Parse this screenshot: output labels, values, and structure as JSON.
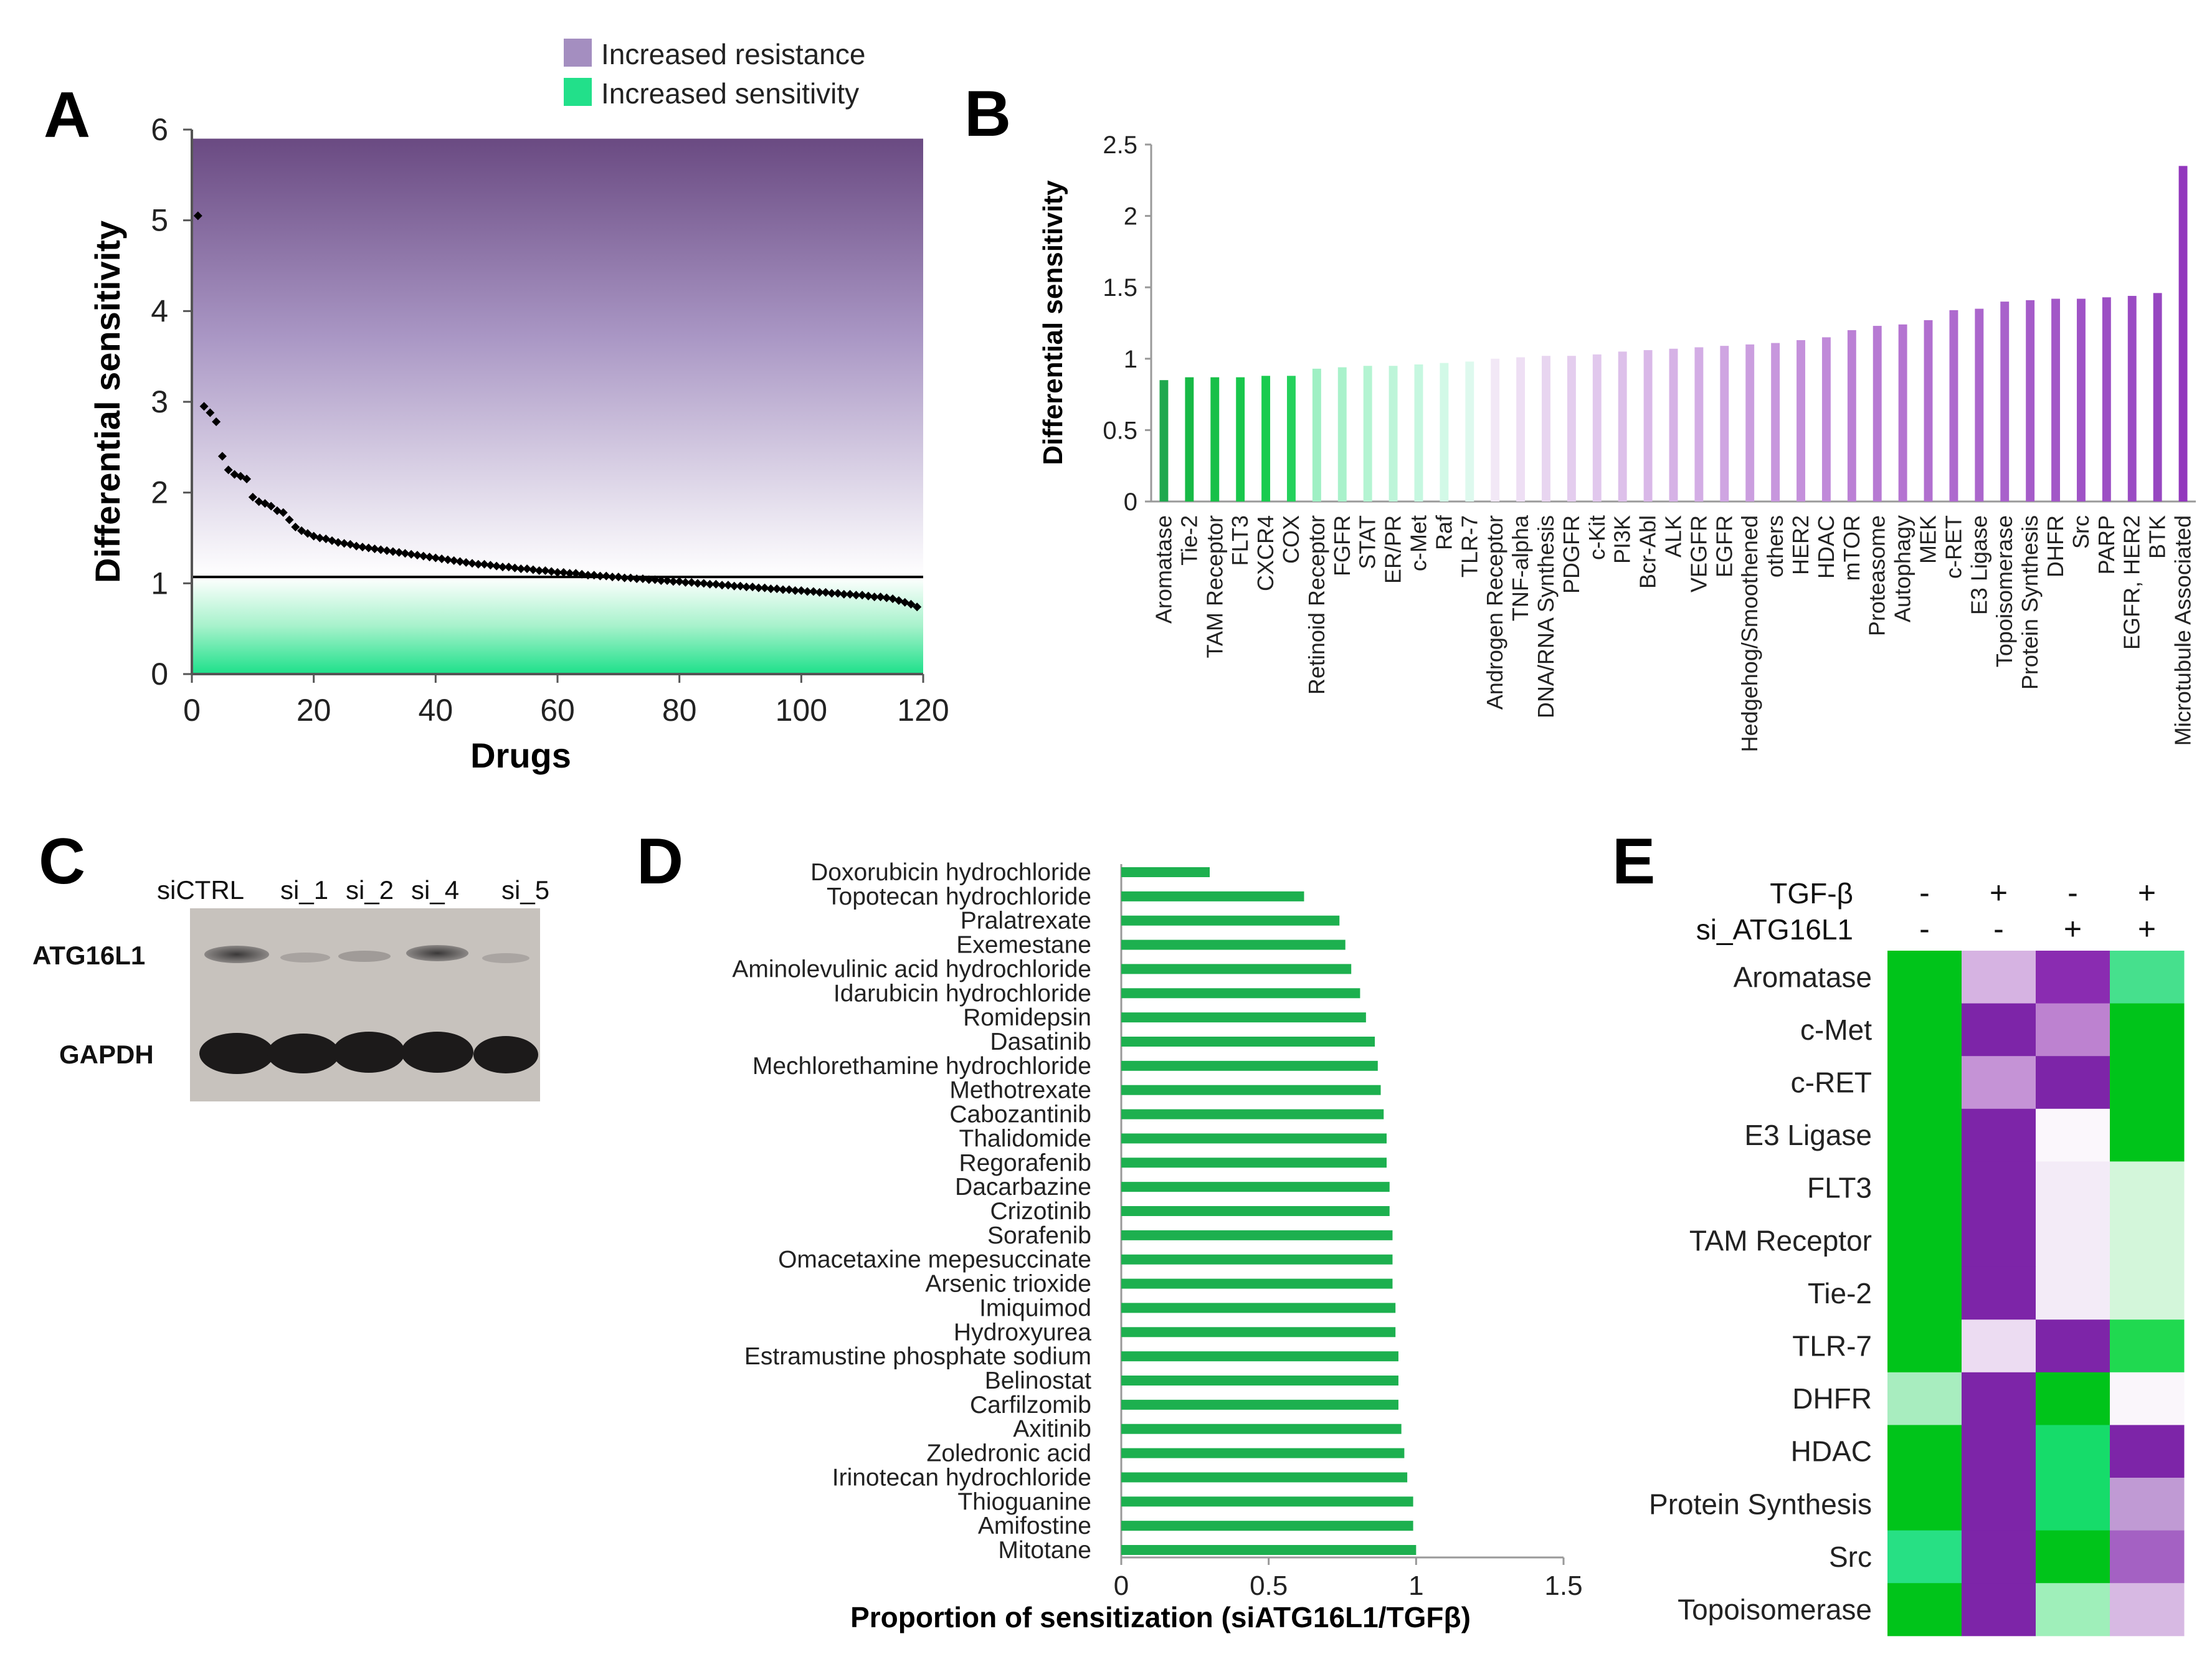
{
  "figure": {
    "panels": [
      "A",
      "B",
      "C",
      "D",
      "E"
    ]
  },
  "chart_data": [
    {
      "id": "A",
      "type": "scatter",
      "title": "",
      "xlabel": "Drugs",
      "ylabel": "Differential sensitivity",
      "xlim": [
        0,
        120
      ],
      "ylim": [
        0,
        6
      ],
      "xticks": [
        "0",
        "20",
        "40",
        "60",
        "80",
        "100",
        "120"
      ],
      "yticks": [
        "0",
        "1",
        "2",
        "3",
        "4",
        "5",
        "6"
      ],
      "threshold": 1.07,
      "legend": {
        "placement": "top-right",
        "entries": [
          {
            "label": "Increased resistance",
            "color": "#a48ec0"
          },
          {
            "label": "Increased sensitivity",
            "color": "#22e08a"
          }
        ]
      },
      "series": [
        {
          "name": "Drugs",
          "color": "#000000",
          "x": [
            1,
            2,
            3,
            4,
            5,
            6,
            7,
            8,
            9,
            10,
            11,
            12,
            13,
            14,
            15,
            16,
            17,
            18,
            19,
            20,
            21,
            22,
            23,
            24,
            25,
            26,
            27,
            28,
            29,
            30,
            31,
            32,
            33,
            34,
            35,
            36,
            37,
            38,
            39,
            40,
            41,
            42,
            43,
            44,
            45,
            46,
            47,
            48,
            49,
            50,
            51,
            52,
            53,
            54,
            55,
            56,
            57,
            58,
            59,
            60,
            61,
            62,
            63,
            64,
            65,
            66,
            67,
            68,
            69,
            70,
            71,
            72,
            73,
            74,
            75,
            76,
            77,
            78,
            79,
            80,
            81,
            82,
            83,
            84,
            85,
            86,
            87,
            88,
            89,
            90,
            91,
            92,
            93,
            94,
            95,
            96,
            97,
            98,
            99,
            100,
            101,
            102,
            103,
            104,
            105,
            106,
            107,
            108,
            109,
            110,
            111,
            112,
            113,
            114,
            115,
            116,
            117,
            118,
            119
          ],
          "y": [
            5.05,
            2.95,
            2.88,
            2.78,
            2.4,
            2.25,
            2.2,
            2.18,
            2.15,
            1.95,
            1.9,
            1.88,
            1.85,
            1.8,
            1.78,
            1.7,
            1.62,
            1.58,
            1.55,
            1.52,
            1.5,
            1.49,
            1.47,
            1.45,
            1.44,
            1.43,
            1.41,
            1.4,
            1.39,
            1.38,
            1.37,
            1.36,
            1.35,
            1.34,
            1.33,
            1.32,
            1.31,
            1.3,
            1.29,
            1.28,
            1.27,
            1.26,
            1.25,
            1.24,
            1.23,
            1.22,
            1.21,
            1.21,
            1.2,
            1.19,
            1.18,
            1.18,
            1.17,
            1.16,
            1.16,
            1.15,
            1.14,
            1.14,
            1.13,
            1.12,
            1.12,
            1.11,
            1.11,
            1.1,
            1.09,
            1.09,
            1.08,
            1.08,
            1.07,
            1.07,
            1.06,
            1.06,
            1.05,
            1.05,
            1.04,
            1.04,
            1.03,
            1.03,
            1.02,
            1.02,
            1.01,
            1.01,
            1.0,
            1.0,
            0.99,
            0.99,
            0.98,
            0.98,
            0.97,
            0.97,
            0.96,
            0.96,
            0.95,
            0.95,
            0.94,
            0.94,
            0.93,
            0.93,
            0.92,
            0.92,
            0.91,
            0.91,
            0.9,
            0.9,
            0.89,
            0.89,
            0.88,
            0.88,
            0.87,
            0.87,
            0.86,
            0.85,
            0.85,
            0.84,
            0.83,
            0.81,
            0.79,
            0.77,
            0.74
          ]
        }
      ]
    },
    {
      "id": "B",
      "type": "bar",
      "title": "",
      "xlabel": "",
      "ylabel": "Differential sensitivity",
      "ylim": [
        0,
        2.5
      ],
      "yticks": [
        "0",
        "0.5",
        "1",
        "1.5",
        "2",
        "2.5"
      ],
      "categories": [
        "Aromatase",
        "Tie-2",
        "TAM Receptor",
        "FLT3",
        "CXCR4",
        "COX",
        "Retinoid Receptor",
        "FGFR",
        "STAT",
        "ER/PR",
        "c-Met",
        "Raf",
        "TLR-7",
        "Androgen Receptor",
        "TNF-alpha",
        "DNA/RNA Synthesis",
        "PDGFR",
        "c-Kit",
        "PI3K",
        "Bcr-Abl",
        "ALK",
        "VEGFR",
        "EGFR",
        "Hedgehog/Smoothened",
        "others",
        "HER2",
        "HDAC",
        "mTOR",
        "Proteasome",
        "Autophagy",
        "MEK",
        "c-RET",
        "E3 Ligase",
        "Topoisomerase",
        "Protein Synthesis",
        "DHFR",
        "Src",
        "PARP",
        "EGFR, HER2",
        "BTK",
        "Microtubule Associated"
      ],
      "values": [
        0.85,
        0.87,
        0.87,
        0.87,
        0.88,
        0.88,
        0.93,
        0.94,
        0.95,
        0.95,
        0.96,
        0.97,
        0.98,
        1.0,
        1.01,
        1.02,
        1.02,
        1.03,
        1.05,
        1.06,
        1.07,
        1.08,
        1.09,
        1.1,
        1.11,
        1.13,
        1.15,
        1.2,
        1.23,
        1.24,
        1.27,
        1.34,
        1.35,
        1.4,
        1.41,
        1.42,
        1.42,
        1.43,
        1.44,
        1.46,
        2.35
      ],
      "colors": [
        "#1fa84f",
        "#17b946",
        "#17c048",
        "#18c74c",
        "#19cb4f",
        "#24d15c",
        "#9ff0c4",
        "#a9f2cb",
        "#b4f4d2",
        "#bdf5d9",
        "#c6f7e0",
        "#d2f9e7",
        "#def9ee",
        "#f2e8f6",
        "#eedff4",
        "#e8d5f0",
        "#e4cdee",
        "#e1c8ed",
        "#ddc0ea",
        "#d9b8e8",
        "#d6b2e6",
        "#d3ade5",
        "#cfa5e2",
        "#cb9edf",
        "#c797dd",
        "#c490db",
        "#c08ad9",
        "#bb80d5",
        "#b77ad3",
        "#b474d1",
        "#b16fcf",
        "#ae6ace",
        "#ab66cc",
        "#a861cb",
        "#a55cc9",
        "#a258c7",
        "#9f53c6",
        "#9c4fc4",
        "#9a4bc3",
        "#9747c1",
        "#9237bd"
      ]
    },
    {
      "id": "D",
      "type": "bar",
      "orientation": "horizontal",
      "title": "",
      "xlabel": "Proportion of sensitization (siATG16L1/TGFβ)",
      "ylabel": "",
      "xlim": [
        0,
        1.5
      ],
      "xticks": [
        "0",
        "0.5",
        "1",
        "1.5"
      ],
      "bar_color": "#1db04f",
      "categories": [
        "Doxorubicin hydrochloride",
        "Topotecan hydrochloride",
        "Pralatrexate",
        "Exemestane",
        "Aminolevulinic acid hydrochloride",
        "Idarubicin hydrochloride",
        "Romidepsin",
        "Dasatinib",
        "Mechlorethamine hydrochloride",
        "Methotrexate",
        "Cabozantinib",
        "Thalidomide",
        "Regorafenib",
        "Dacarbazine",
        "Crizotinib",
        "Sorafenib",
        "Omacetaxine mepesuccinate",
        "Arsenic trioxide",
        "Imiquimod",
        "Hydroxyurea",
        "Estramustine phosphate sodium",
        "Belinostat",
        "Carfilzomib",
        "Axitinib",
        "Zoledronic acid",
        "Irinotecan hydrochloride",
        "Thioguanine",
        "Amifostine",
        "Mitotane"
      ],
      "values": [
        0.3,
        0.62,
        0.74,
        0.76,
        0.78,
        0.81,
        0.83,
        0.86,
        0.87,
        0.88,
        0.89,
        0.9,
        0.9,
        0.91,
        0.91,
        0.92,
        0.92,
        0.92,
        0.93,
        0.93,
        0.94,
        0.94,
        0.94,
        0.95,
        0.96,
        0.97,
        0.99,
        0.99,
        1.0
      ]
    },
    {
      "id": "E",
      "type": "heatmap",
      "title": "",
      "column_headers": [
        {
          "label": "TGF-β",
          "values": [
            "-",
            "+",
            "-",
            "+"
          ]
        },
        {
          "label": "si_ATG16L1",
          "values": [
            "-",
            "-",
            "+",
            "+"
          ]
        }
      ],
      "rows": [
        "Aromatase",
        "c-Met",
        "c-RET",
        "E3 Ligase",
        "FLT3",
        "TAM Receptor",
        "Tie-2",
        "TLR-7",
        "DHFR",
        "HDAC",
        "Protein Synthesis",
        "Src",
        "Topoisomerase"
      ],
      "cells": [
        [
          "#00c41a",
          "#d6b3e2",
          "#8a2cb1",
          "#46e08d"
        ],
        [
          "#00c41a",
          "#7d25a8",
          "#bd82d0",
          "#00c41a"
        ],
        [
          "#00c41a",
          "#c593d6",
          "#7d25a8",
          "#00c41a"
        ],
        [
          "#00c41a",
          "#7d25a8",
          "#fbf7fc",
          "#00c41a"
        ],
        [
          "#00c41a",
          "#7d25a8",
          "#f3ebf7",
          "#d3f6da"
        ],
        [
          "#00c41a",
          "#7d25a8",
          "#f3ebf7",
          "#d3f6da"
        ],
        [
          "#00c41a",
          "#7d25a8",
          "#f3ebf7",
          "#d3f6da"
        ],
        [
          "#00c41a",
          "#ecdcf2",
          "#7d25a8",
          "#20d950"
        ],
        [
          "#a8edbf",
          "#7d25a8",
          "#00c41a",
          "#faf6fb"
        ],
        [
          "#00c41a",
          "#7d25a8",
          "#16dc6a",
          "#7d25a8"
        ],
        [
          "#00c41a",
          "#7d25a8",
          "#16dc6a",
          "#c09ad4"
        ],
        [
          "#27e084",
          "#7d25a8",
          "#00c41a",
          "#a461c3"
        ],
        [
          "#00c41a",
          "#7d25a8",
          "#9fefba",
          "#d7b9e3"
        ]
      ]
    }
  ],
  "panelC": {
    "lane_labels": [
      "siCTRL",
      "si_1",
      "si_2",
      "si_4",
      "si_5"
    ],
    "row_labels": [
      "ATG16L1",
      "GAPDH"
    ]
  }
}
